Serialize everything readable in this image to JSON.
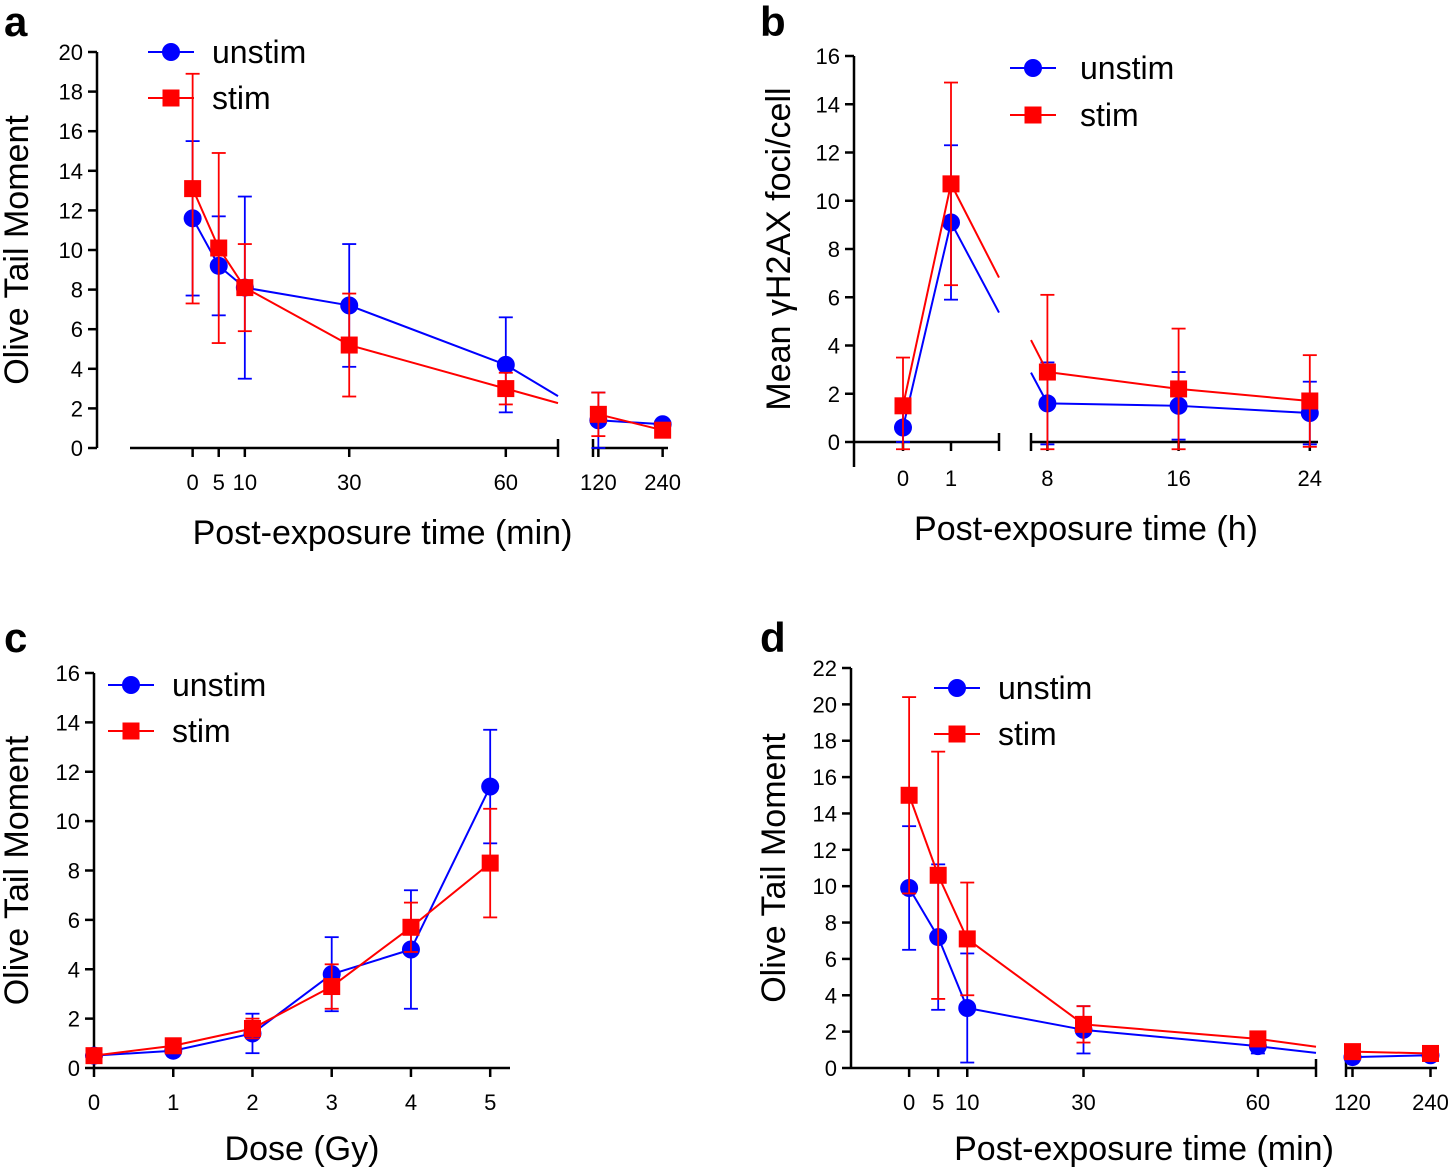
{
  "chart_data": [
    {
      "id": "a",
      "type": "line",
      "panel_label": "a",
      "xlabel": "Post-exposure time (min)",
      "ylabel": "Olive Tail Moment",
      "ylim": [
        0,
        20
      ],
      "yticks": [
        0,
        2,
        4,
        6,
        8,
        10,
        12,
        14,
        16,
        18,
        20
      ],
      "x_segments": [
        {
          "range": [
            -12,
            70
          ],
          "ticks": [
            0,
            5,
            10,
            30,
            60
          ]
        },
        {
          "range": [
            110,
            250
          ],
          "ticks": [
            120,
            240
          ]
        }
      ],
      "legend": [
        "unstim",
        "stim"
      ],
      "legend_position": "top-left",
      "series": [
        {
          "name": "unstim",
          "color": "#0000ff",
          "marker": "circle",
          "x": [
            0,
            5,
            10,
            30,
            60,
            120,
            240
          ],
          "y": [
            11.6,
            9.2,
            8.1,
            7.2,
            4.2,
            1.4,
            1.2
          ],
          "err": [
            3.9,
            2.5,
            4.6,
            3.1,
            2.4,
            1.4,
            0.2
          ]
        },
        {
          "name": "stim",
          "color": "#ff0000",
          "marker": "square",
          "x": [
            0,
            5,
            10,
            30,
            60,
            120,
            240
          ],
          "y": [
            13.1,
            10.1,
            8.1,
            5.2,
            3.0,
            1.7,
            0.9
          ],
          "err": [
            5.8,
            4.8,
            2.2,
            2.6,
            0.8,
            1.1,
            0.2
          ]
        }
      ]
    },
    {
      "id": "b",
      "type": "line",
      "panel_label": "b",
      "xlabel": "Post-exposure time (h)",
      "ylabel": "Mean γH2AX foci/cell",
      "ylim": [
        0,
        16
      ],
      "yticks": [
        0,
        2,
        4,
        6,
        8,
        10,
        12,
        14,
        16
      ],
      "x_segments": [
        {
          "range": [
            -1,
            2
          ],
          "ticks": [
            0,
            1
          ]
        },
        {
          "range": [
            7,
            24.5
          ],
          "ticks": [
            8,
            16,
            24
          ]
        }
      ],
      "legend": [
        "unstim",
        "stim"
      ],
      "legend_position": "top-right",
      "series": [
        {
          "name": "unstim",
          "color": "#0000ff",
          "marker": "circle",
          "x": [
            0,
            1,
            8,
            16,
            24
          ],
          "y": [
            0.6,
            9.1,
            1.6,
            1.5,
            1.2
          ],
          "err": [
            0.6,
            3.2,
            1.7,
            1.4,
            1.3
          ]
        },
        {
          "name": "stim",
          "color": "#ff0000",
          "marker": "square",
          "x": [
            0,
            1,
            8,
            16,
            24
          ],
          "y": [
            1.5,
            10.7,
            2.9,
            2.2,
            1.7
          ],
          "err": [
            2.0,
            4.2,
            3.2,
            2.5,
            1.9
          ]
        }
      ]
    },
    {
      "id": "c",
      "type": "line",
      "panel_label": "c",
      "xlabel": "Dose (Gy)",
      "ylabel": "Olive Tail Moment",
      "ylim": [
        0,
        16
      ],
      "yticks": [
        0,
        2,
        4,
        6,
        8,
        10,
        12,
        14,
        16
      ],
      "x_segments": [
        {
          "range": [
            0,
            5.25
          ],
          "ticks": [
            0,
            1,
            2,
            3,
            4,
            5
          ]
        }
      ],
      "legend": [
        "unstim",
        "stim"
      ],
      "legend_position": "top-left",
      "series": [
        {
          "name": "unstim",
          "color": "#0000ff",
          "marker": "circle",
          "x": [
            0,
            1,
            2,
            3,
            4,
            5
          ],
          "y": [
            0.5,
            0.7,
            1.4,
            3.8,
            4.8,
            11.4
          ],
          "err": [
            0.2,
            0.2,
            0.8,
            1.5,
            2.4,
            2.3
          ]
        },
        {
          "name": "stim",
          "color": "#ff0000",
          "marker": "square",
          "x": [
            0,
            1,
            2,
            3,
            4,
            5
          ],
          "y": [
            0.5,
            0.9,
            1.6,
            3.3,
            5.7,
            8.3
          ],
          "err": [
            0.2,
            0.2,
            0.4,
            0.9,
            1.0,
            2.2
          ]
        }
      ]
    },
    {
      "id": "d",
      "type": "line",
      "panel_label": "d",
      "xlabel": "Post-exposure time (min)",
      "ylabel": "Olive  Tail  Moment",
      "ylim": [
        0,
        22
      ],
      "yticks": [
        0,
        2,
        4,
        6,
        8,
        10,
        12,
        14,
        16,
        18,
        20,
        22
      ],
      "x_segments": [
        {
          "range": [
            -10,
            70
          ],
          "ticks": [
            0,
            5,
            10,
            30,
            60
          ]
        },
        {
          "range": [
            110,
            250
          ],
          "ticks": [
            120,
            240
          ]
        }
      ],
      "legend": [
        "unstim",
        "stim"
      ],
      "legend_position": "top-right",
      "series": [
        {
          "name": "unstim",
          "color": "#0000ff",
          "marker": "circle",
          "x": [
            0,
            5,
            10,
            30,
            60,
            120,
            240
          ],
          "y": [
            9.9,
            7.2,
            3.3,
            2.1,
            1.2,
            0.6,
            0.7
          ],
          "err": [
            3.4,
            4.0,
            3.0,
            1.3,
            0.4,
            0.2,
            0.2
          ]
        },
        {
          "name": "stim",
          "color": "#ff0000",
          "marker": "square",
          "x": [
            0,
            5,
            10,
            30,
            60,
            120,
            240
          ],
          "y": [
            15.0,
            10.6,
            7.1,
            2.4,
            1.6,
            0.9,
            0.8
          ],
          "err": [
            5.4,
            6.8,
            3.1,
            1.0,
            0.2,
            0.2,
            0.2
          ]
        }
      ]
    }
  ]
}
